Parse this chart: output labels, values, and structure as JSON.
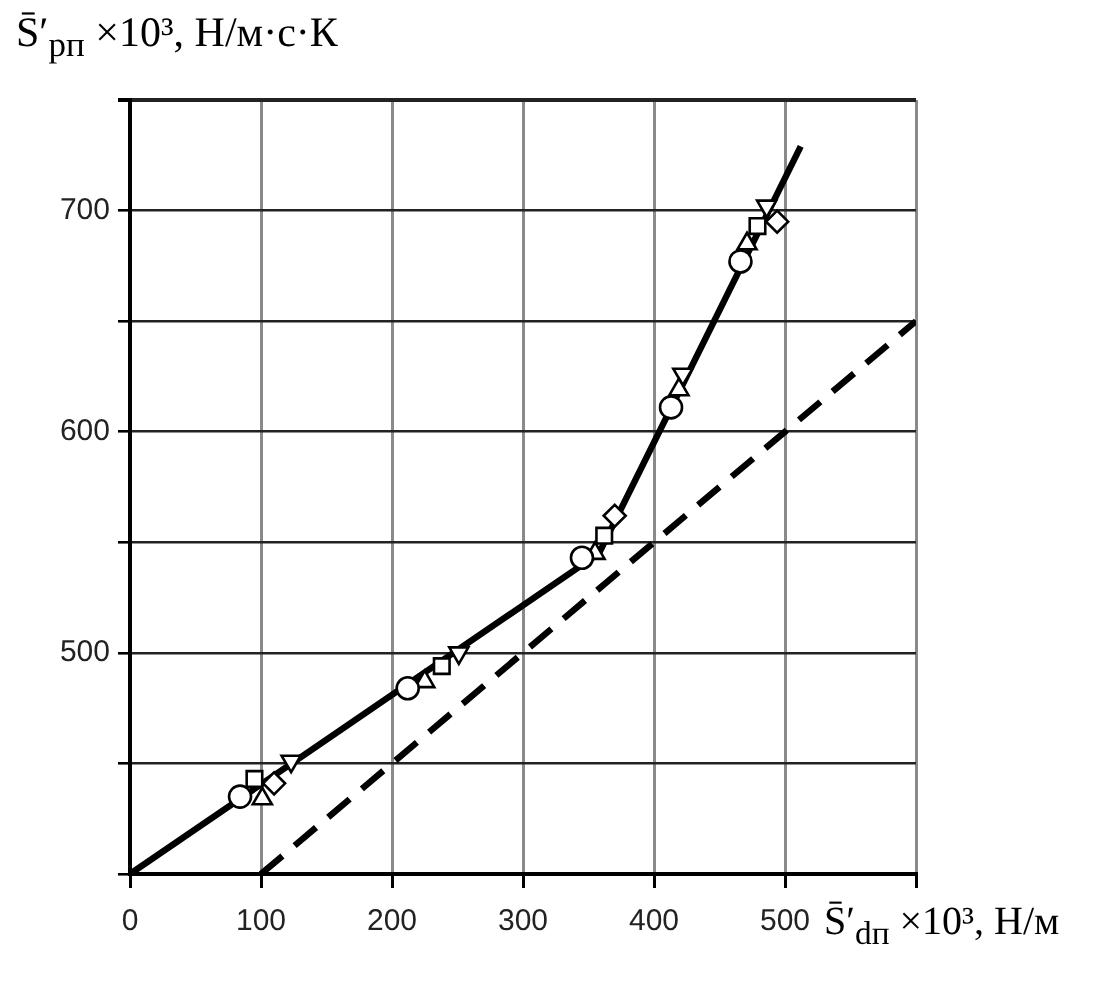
{
  "chart_data": {
    "type": "line",
    "xlabel": "S̄′$_{dп}$ ×10³, Н/м",
    "ylabel": "S̄′$_{pп}$ ×10³, Н/м·с·К",
    "xlim": [
      0,
      600
    ],
    "ylim": [
      400,
      750
    ],
    "xticks": [
      0,
      100,
      200,
      300,
      400,
      500,
      {
        "value": 600,
        "label": null
      }
    ],
    "yticks": [
      {
        "value": 400,
        "label": null
      },
      {
        "value": 450,
        "label": null
      },
      500,
      {
        "value": 550,
        "label": null
      },
      600,
      {
        "value": 650,
        "label": null
      },
      700,
      {
        "value": 750,
        "label": null
      }
    ],
    "grid": true,
    "legend": false,
    "series": [
      {
        "color": "#000000",
        "line_style": "solid",
        "marker": "none",
        "x": [
          0,
          358,
          512
        ],
        "values": [
          400,
          545,
          729
        ]
      },
      {
        "color": "#000000",
        "line_style": "dashed",
        "marker": "none",
        "x": [
          100,
          600
        ],
        "values": [
          400,
          650
        ]
      },
      {
        "type": "scatter",
        "color": "#000000",
        "marker": "circle",
        "x": [
          84,
          212,
          345,
          413,
          466
        ],
        "values": [
          435,
          484,
          543,
          611,
          677
        ]
      },
      {
        "type": "scatter",
        "color": "#000000",
        "marker": "triangle",
        "x": [
          101,
          225,
          355,
          419,
          471
        ],
        "values": [
          434,
          487,
          545,
          619,
          685
        ]
      },
      {
        "type": "scatter",
        "color": "#000000",
        "marker": "square",
        "x": [
          95,
          238,
          362,
          479
        ],
        "values": [
          443,
          494,
          553,
          693
        ]
      },
      {
        "type": "scatter",
        "color": "#000000",
        "marker": "diamond",
        "x": [
          110,
          370,
          494
        ],
        "values": [
          441,
          562,
          695
        ]
      },
      {
        "type": "scatter",
        "color": "#000000",
        "marker": "triangle-down",
        "x": [
          123,
          251,
          422,
          486
        ],
        "values": [
          451,
          500,
          626,
          702
        ]
      }
    ]
  }
}
